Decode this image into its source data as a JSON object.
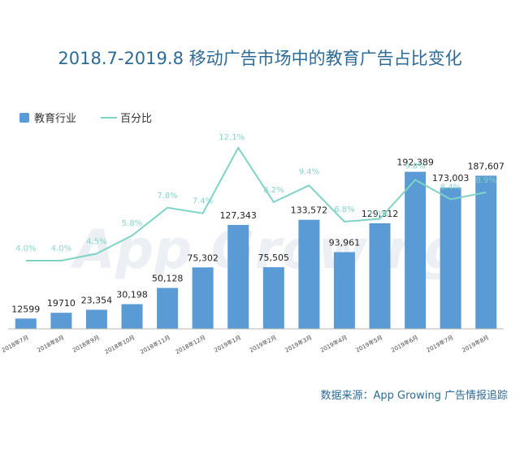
{
  "chart_data": {
    "type": "bar",
    "title": "2018.7-2019.8 移动广告市场中的教育广告占比变化",
    "categories": [
      "2018年7月",
      "2018年8月",
      "2018年9月",
      "2018年10月",
      "2018年11月",
      "2018年12月",
      "2019年1月",
      "2019年2月",
      "2019年3月",
      "2019年4月",
      "2019年5月",
      "2019年6月",
      "2019年7月",
      "2019年8月"
    ],
    "series": [
      {
        "name": "教育行业",
        "type": "bar",
        "values": [
          12599,
          19710,
          23354,
          30198,
          50128,
          75302,
          127343,
          75505,
          133572,
          93961,
          129312,
          192389,
          173003,
          187607
        ],
        "labels": [
          "12599",
          "19710",
          "23,354",
          "30,198",
          "50,128",
          "75,302",
          "127,343",
          "75,505",
          "133,572",
          "93,961",
          "129,312",
          "192,389",
          "173,003",
          "187,607"
        ]
      },
      {
        "name": "百分比",
        "type": "line",
        "values": [
          4.0,
          4.0,
          4.5,
          5.8,
          7.8,
          7.4,
          12.1,
          8.2,
          9.4,
          6.8,
          7.0,
          9.8,
          8.4,
          8.9
        ],
        "labels": [
          "4.0%",
          "4.0%",
          "4.5%",
          "5.8%",
          "7.8%",
          "7.4%",
          "12.1%",
          "8.2%",
          "9.4%",
          "6.8%",
          "7.0%",
          "9.8%",
          "8.4%",
          "8.9%"
        ]
      }
    ],
    "ylim": [
      0,
      200000
    ],
    "y2lim": [
      0,
      14
    ],
    "grid": false,
    "legend": "top-left",
    "source": "数据来源：App Growing 广告情报追踪",
    "watermark": "AppGrowing",
    "colors": {
      "bar": "#5b9bd5",
      "line": "#7fd3c6",
      "title": "#2e6a96",
      "source": "#2e6a96",
      "axis": "#b4b4b4"
    }
  }
}
